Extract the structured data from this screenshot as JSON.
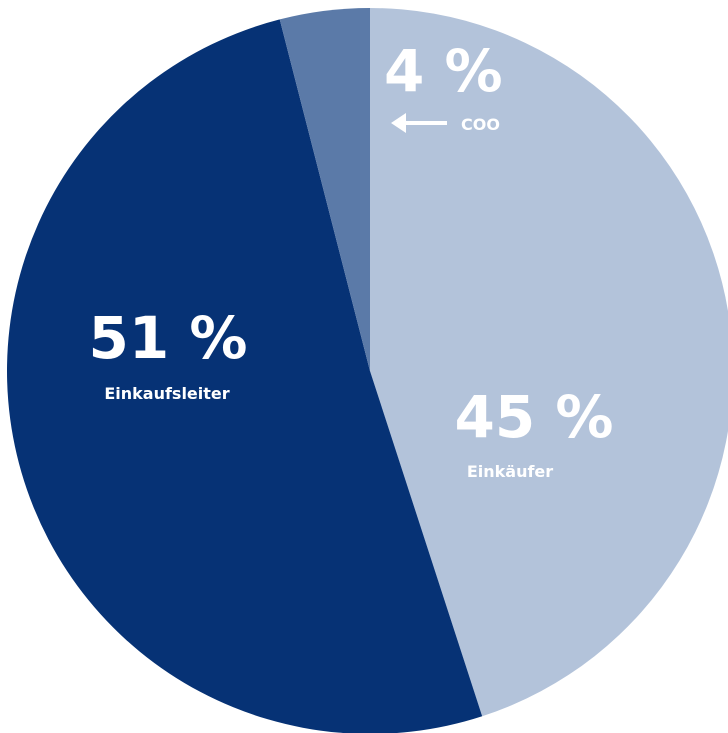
{
  "chart_data": {
    "type": "pie",
    "slices": [
      {
        "label": "Einkäufer",
        "value": 45,
        "display": "45 %",
        "color": "#b3c3da",
        "text_color": "#ffffff"
      },
      {
        "label": "Einkaufsleiter",
        "value": 51,
        "display": "51 %",
        "color": "#063275",
        "text_color": "#ffffff"
      },
      {
        "label": "COO",
        "value": 4,
        "display": "4 %",
        "color": "#5b7aa8",
        "text_color": "#ffffff"
      }
    ],
    "start_angle_deg": 0,
    "direction": "clockwise",
    "legend": "none",
    "title": ""
  }
}
